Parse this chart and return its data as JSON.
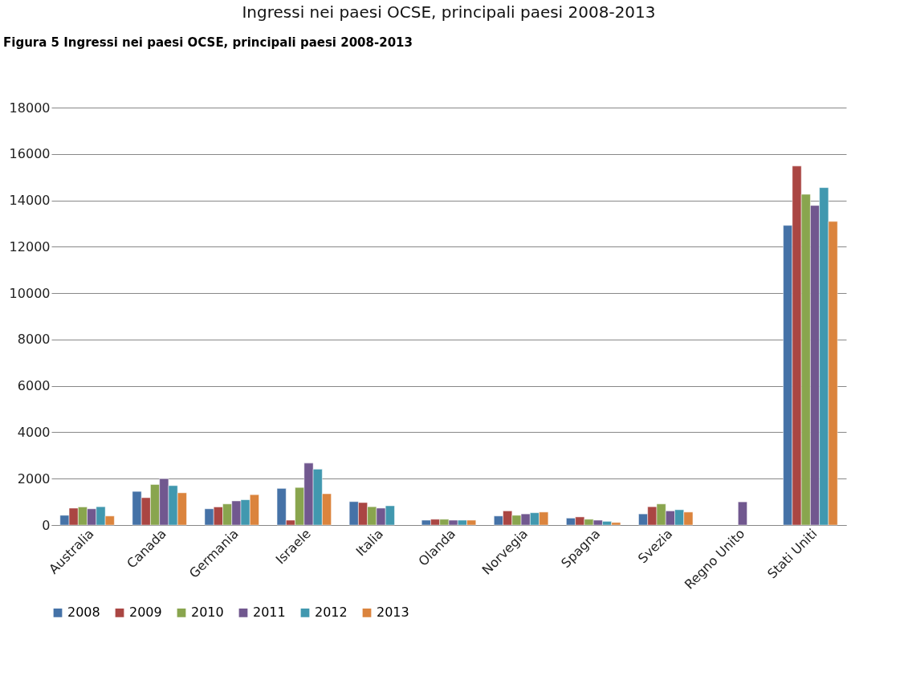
{
  "chart_data": {
    "type": "bar",
    "title": "Ingressi nei paesi OCSE, principali paesi 2008-2013",
    "annotations": [
      "Figura 5 Ingressi nei paesi OCSE, principali paesi 2008-2013"
    ],
    "categories": [
      "Australia",
      "Canada",
      "Germania",
      "Israele",
      "Italia",
      "Olanda",
      "Norvegia",
      "Spagna",
      "Svezia",
      "Regno Unito",
      "Stati Uniti"
    ],
    "series": [
      {
        "name": "2008",
        "color": "#4572a7",
        "values": [
          420,
          1450,
          700,
          1580,
          1010,
          210,
          390,
          300,
          480,
          null,
          12920
        ]
      },
      {
        "name": "2009",
        "color": "#aa4643",
        "values": [
          730,
          1180,
          780,
          210,
          970,
          250,
          610,
          350,
          790,
          null,
          15480
        ]
      },
      {
        "name": "2010",
        "color": "#89a54e",
        "values": [
          780,
          1750,
          910,
          1620,
          790,
          250,
          420,
          250,
          910,
          null,
          14260
        ]
      },
      {
        "name": "2011",
        "color": "#71588f",
        "values": [
          700,
          2000,
          1040,
          2670,
          730,
          210,
          480,
          210,
          610,
          1000,
          13780
        ]
      },
      {
        "name": "2012",
        "color": "#4198af",
        "values": [
          790,
          1700,
          1090,
          2410,
          830,
          210,
          530,
          160,
          660,
          null,
          14550
        ]
      },
      {
        "name": "2013",
        "color": "#db843d",
        "values": [
          390,
          1390,
          1310,
          1350,
          null,
          210,
          560,
          110,
          560,
          null,
          13090
        ]
      }
    ],
    "ylim": [
      0,
      18000
    ],
    "yticks": [
      0,
      2000,
      4000,
      6000,
      8000,
      10000,
      12000,
      14000,
      16000,
      18000
    ],
    "grid": "y",
    "legend": "bottom"
  }
}
